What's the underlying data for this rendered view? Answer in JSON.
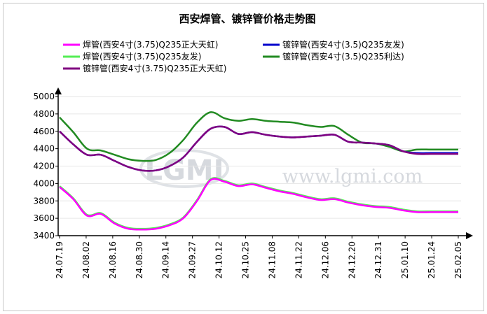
{
  "chart_data": {
    "type": "line",
    "title": "西安焊管、镀锌管价格走势图",
    "watermark": {
      "logo": "LGMI",
      "url": "www.lgmi.com"
    },
    "ylim": [
      3400,
      5000
    ],
    "yticks": [
      3400,
      3600,
      3800,
      4000,
      4200,
      4400,
      4600,
      4800,
      5000
    ],
    "xtick_labels": [
      "24.07.19",
      "24.08.02",
      "24.08.16",
      "24.08.30",
      "24.09.14",
      "24.09.27",
      "24.10.12",
      "24.10.25",
      "24.11.08",
      "24.11.22",
      "24.12.06",
      "24.12.20",
      "24.12.31",
      "25.01.10",
      "25.01.24",
      "25.02.05"
    ],
    "grid": true,
    "legend_position": "top",
    "series": [
      {
        "name": "焊管(西安4寸(3.75)Q235正大天虹)",
        "color": "#ff00ff",
        "values": [
          3960,
          3820,
          3630,
          3650,
          3540,
          3480,
          3470,
          3480,
          3520,
          3600,
          3800,
          4040,
          4020,
          3970,
          3990,
          3950,
          3910,
          3880,
          3840,
          3810,
          3820,
          3780,
          3750,
          3730,
          3720,
          3690,
          3670,
          3670,
          3670,
          3670
        ]
      },
      {
        "name": "焊管(西安4寸(3.75)Q235友发)",
        "color": "#55ee55",
        "values": [
          3970,
          3830,
          3640,
          3660,
          3550,
          3490,
          3480,
          3490,
          3530,
          3610,
          3810,
          4050,
          4030,
          3980,
          4000,
          3960,
          3920,
          3890,
          3850,
          3820,
          3830,
          3790,
          3760,
          3740,
          3730,
          3700,
          3680,
          3680,
          3680,
          3680
        ]
      },
      {
        "name": "镀锌管(西安4寸(3.5)Q235友发)",
        "color": "#0000cc",
        "values": [
          4600,
          4450,
          4330,
          4330,
          4260,
          4190,
          4150,
          4150,
          4200,
          4300,
          4480,
          4630,
          4650,
          4570,
          4590,
          4560,
          4540,
          4530,
          4540,
          4550,
          4560,
          4480,
          4470,
          4460,
          4440,
          4370,
          4350,
          4350,
          4350,
          4350
        ]
      },
      {
        "name": "镀锌管(西安4寸(3.5)Q235利达)",
        "color": "#228b22",
        "values": [
          4760,
          4590,
          4400,
          4380,
          4330,
          4280,
          4260,
          4270,
          4350,
          4500,
          4700,
          4820,
          4750,
          4720,
          4740,
          4720,
          4710,
          4700,
          4670,
          4650,
          4660,
          4560,
          4470,
          4460,
          4420,
          4370,
          4390,
          4390,
          4390,
          4390
        ]
      },
      {
        "name": "镀锌管(西安4寸(3.75)Q235正大天虹)",
        "color": "#800080",
        "values": [
          4600,
          4450,
          4330,
          4330,
          4260,
          4190,
          4150,
          4150,
          4200,
          4300,
          4480,
          4630,
          4650,
          4570,
          4590,
          4560,
          4540,
          4530,
          4540,
          4550,
          4560,
          4480,
          4470,
          4460,
          4440,
          4370,
          4340,
          4340,
          4340,
          4340
        ]
      }
    ]
  }
}
